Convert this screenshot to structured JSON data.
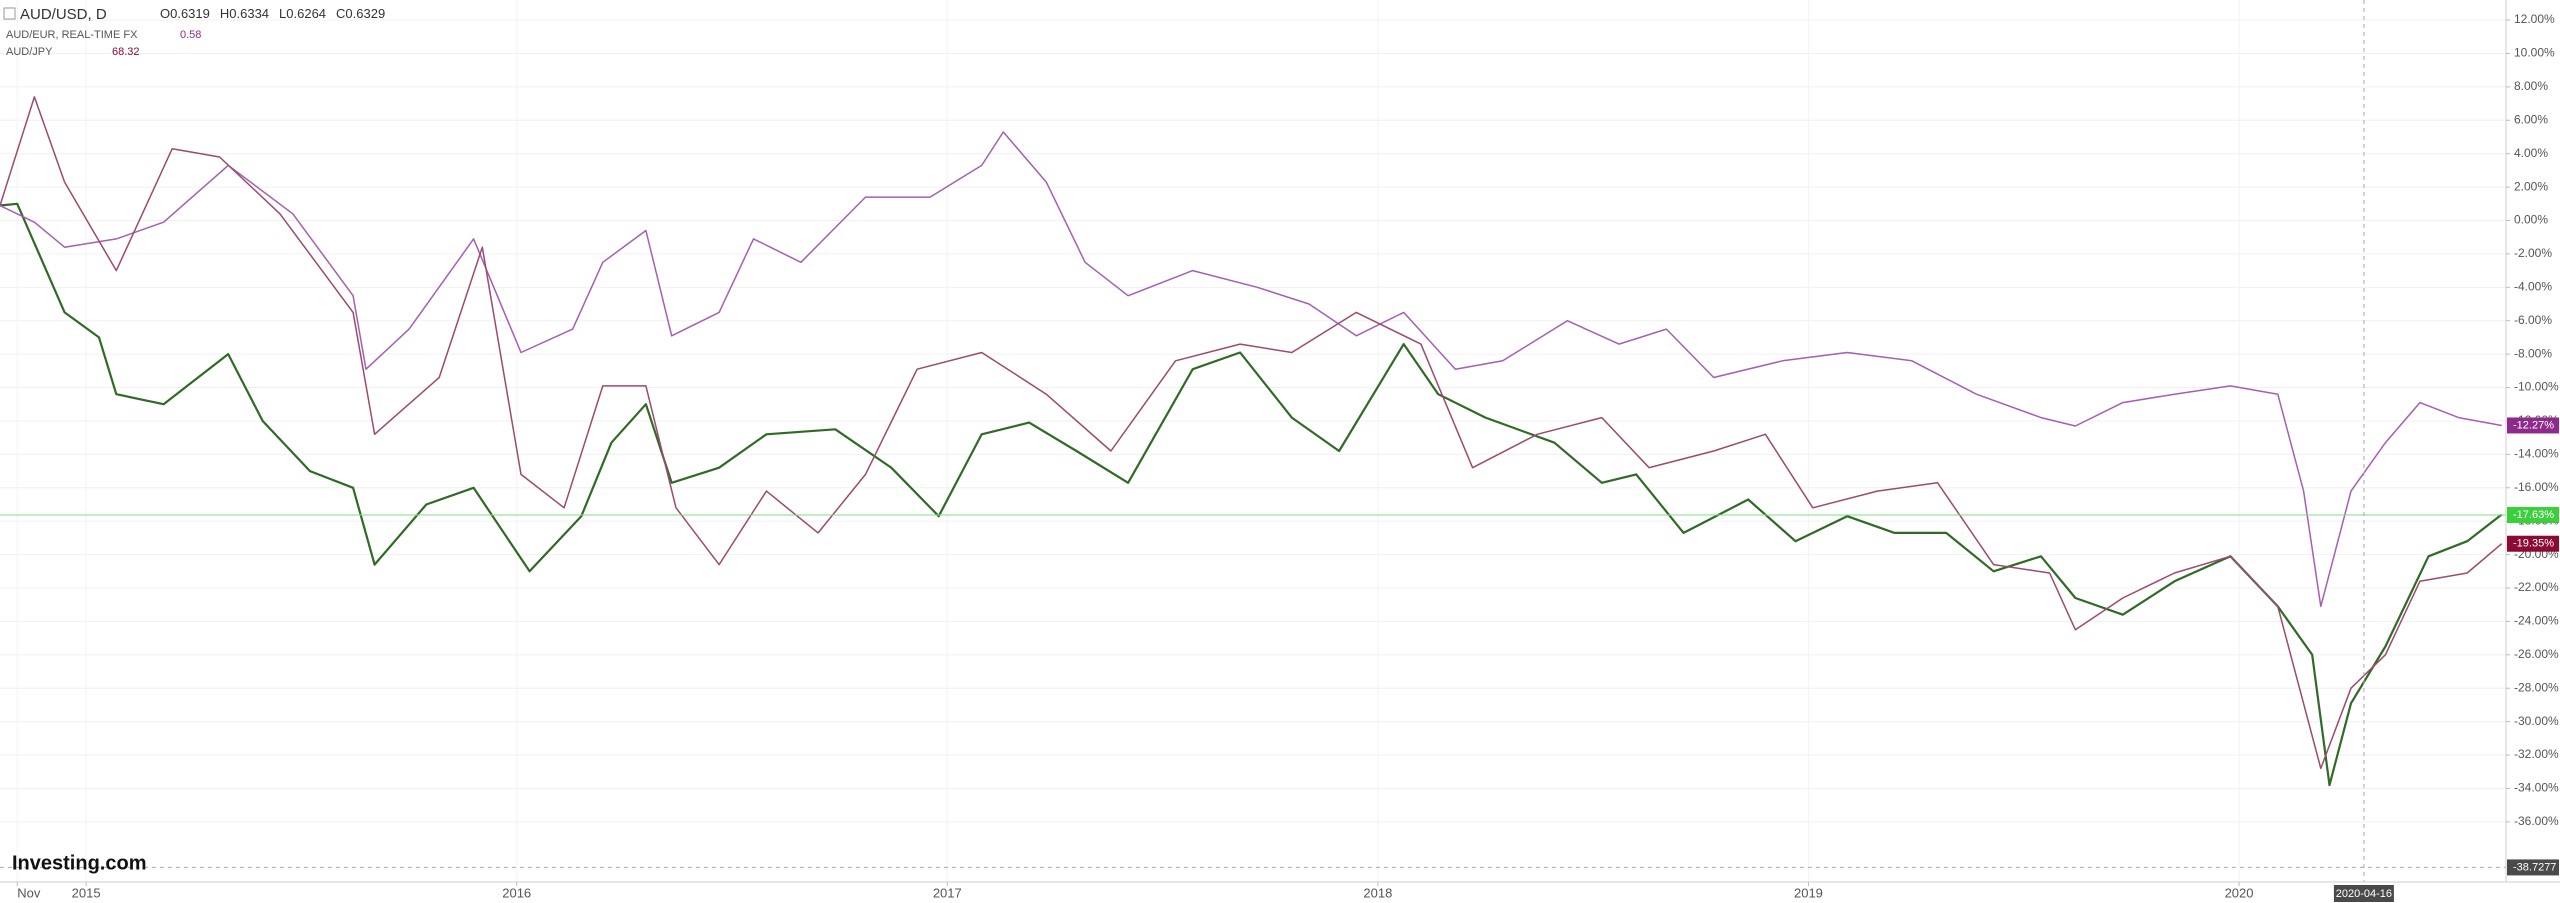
{
  "chart_data": {
    "type": "line",
    "title": "AUD/USD, D",
    "ohlc": [
      "O0.6319",
      "H0.6334",
      "L0.6264",
      "C0.6329"
    ],
    "watermark": "Investing.com",
    "xlim": [
      2014.8,
      2020.62
    ],
    "ylim": [
      -39.6,
      13.2
    ],
    "xticks": [
      {
        "value": 2014.84,
        "label": "Nov"
      },
      {
        "value": 2015,
        "label": "2015"
      },
      {
        "value": 2016,
        "label": "2016"
      },
      {
        "value": 2017,
        "label": "2017"
      },
      {
        "value": 2018,
        "label": "2018"
      },
      {
        "value": 2019,
        "label": "2019"
      },
      {
        "value": 2020,
        "label": "2020"
      }
    ],
    "yticks": [
      {
        "value": 12,
        "label": "12.00%"
      },
      {
        "value": 10,
        "label": "10.00%"
      },
      {
        "value": 8,
        "label": "8.00%"
      },
      {
        "value": 6,
        "label": "6.00%"
      },
      {
        "value": 4,
        "label": "4.00%"
      },
      {
        "value": 2,
        "label": "2.00%"
      },
      {
        "value": 0,
        "label": "0.00%"
      },
      {
        "value": -2,
        "label": "-2.00%"
      },
      {
        "value": -4,
        "label": "-4.00%"
      },
      {
        "value": -6,
        "label": "-6.00%"
      },
      {
        "value": -8,
        "label": "-8.00%"
      },
      {
        "value": -10,
        "label": "-10.00%"
      },
      {
        "value": -12,
        "label": "-12.00%"
      },
      {
        "value": -14,
        "label": "-14.00%"
      },
      {
        "value": -16,
        "label": "-16.00%"
      },
      {
        "value": -18,
        "label": "-18.00%"
      },
      {
        "value": -20,
        "label": "-20.00%"
      },
      {
        "value": -22,
        "label": "-22.00%"
      },
      {
        "value": -24,
        "label": "-24.00%"
      },
      {
        "value": -26,
        "label": "-26.00%"
      },
      {
        "value": -28,
        "label": "-28.00%"
      },
      {
        "value": -30,
        "label": "-30.00%"
      },
      {
        "value": -32,
        "label": "-32.00%"
      },
      {
        "value": -34,
        "label": "-34.00%"
      },
      {
        "value": -36,
        "label": "-36.00%"
      }
    ],
    "grid": true,
    "crosshair": {
      "x": {
        "value": 2020.29,
        "label": "2020-04-16"
      },
      "y": -38.7277
    },
    "series": [
      {
        "name": "AUD/USD, D",
        "color": "#2f6b25",
        "label_color": "#3ccf3c",
        "last": {
          "value": -17.63,
          "label": "-17.63%"
        },
        "x": [
          2014.8,
          2014.84,
          2014.95,
          2015.03,
          2015.07,
          2015.18,
          2015.33,
          2015.41,
          2015.52,
          2015.62,
          2015.67,
          2015.79,
          2015.9,
          2016.03,
          2016.15,
          2016.22,
          2016.3,
          2016.36,
          2016.47,
          2016.58,
          2016.74,
          2016.87,
          2016.98,
          2017.08,
          2017.19,
          2017.3,
          2017.42,
          2017.57,
          2017.68,
          2017.8,
          2017.91,
          2018.06,
          2018.14,
          2018.25,
          2018.41,
          2018.52,
          2018.6,
          2018.71,
          2018.86,
          2018.97,
          2019.09,
          2019.2,
          2019.32,
          2019.43,
          2019.54,
          2019.62,
          2019.73,
          2019.85,
          2019.98,
          2020.09,
          2020.17,
          2020.21,
          2020.26,
          2020.34,
          2020.44,
          2020.53,
          2020.61
        ],
        "values": [
          0.9,
          1,
          -5.5,
          -7,
          -10.4,
          -11,
          -8,
          -12,
          -15,
          -16,
          -20.6,
          -17,
          -16,
          -21,
          -17.7,
          -13.3,
          -11,
          -15.7,
          -14.8,
          -12.8,
          -12.5,
          -14.8,
          -17.7,
          -12.8,
          -12.1,
          -13.8,
          -15.7,
          -8.9,
          -7.9,
          -11.8,
          -13.8,
          -7.4,
          -10.4,
          -11.8,
          -13.3,
          -15.7,
          -15.2,
          -18.7,
          -16.7,
          -19.2,
          -17.7,
          -18.7,
          -18.7,
          -21,
          -20.1,
          -22.6,
          -23.6,
          -21.6,
          -20.1,
          -23.1,
          -26,
          -33.8,
          -28.9,
          -25.5,
          -20.1,
          -19.2,
          -17.6
        ]
      },
      {
        "name": "AUD/EUR, REAL-TIME FX",
        "price": "0.58",
        "color": "#a45fb4",
        "label_color": "#8e2a8c",
        "last": {
          "value": -12.27,
          "label": "-12.27%"
        },
        "x": [
          2014.8,
          2014.88,
          2014.95,
          2015.07,
          2015.18,
          2015.33,
          2015.48,
          2015.62,
          2015.65,
          2015.75,
          2015.9,
          2016.01,
          2016.13,
          2016.2,
          2016.3,
          2016.36,
          2016.47,
          2016.55,
          2016.66,
          2016.81,
          2016.96,
          2017.08,
          2017.13,
          2017.23,
          2017.32,
          2017.42,
          2017.57,
          2017.72,
          2017.84,
          2017.95,
          2018.06,
          2018.18,
          2018.29,
          2018.44,
          2018.56,
          2018.67,
          2018.78,
          2018.94,
          2019.09,
          2019.24,
          2019.39,
          2019.54,
          2019.62,
          2019.73,
          2019.85,
          2019.98,
          2020.09,
          2020.15,
          2020.19,
          2020.26,
          2020.34,
          2020.42,
          2020.51,
          2020.61
        ],
        "values": [
          0.9,
          -0.1,
          -1.6,
          -1.1,
          -0.1,
          3.3,
          0.4,
          -4.5,
          -8.9,
          -6.5,
          -1.1,
          -7.9,
          -6.5,
          -2.5,
          -0.6,
          -6.9,
          -5.5,
          -1.1,
          -2.5,
          1.4,
          1.4,
          3.3,
          5.3,
          2.3,
          -2.5,
          -4.5,
          -3,
          -4,
          -5,
          -6.9,
          -5.5,
          -8.9,
          -8.4,
          -6,
          -7.4,
          -6.5,
          -9.4,
          -8.4,
          -7.9,
          -8.4,
          -10.4,
          -11.8,
          -12.3,
          -10.9,
          -10.4,
          -9.9,
          -10.4,
          -16.2,
          -23.1,
          -16.2,
          -13.3,
          -10.9,
          -11.8,
          -12.27
        ]
      },
      {
        "name": "AUD/JPY",
        "price": "68.32",
        "color": "#9c4a6e",
        "label_color": "#8b0a36",
        "last": {
          "value": -19.35,
          "label": "-19.35%"
        },
        "x": [
          2014.8,
          2014.88,
          2014.95,
          2015.07,
          2015.2,
          2015.31,
          2015.45,
          2015.62,
          2015.67,
          2015.82,
          2015.92,
          2016.01,
          2016.11,
          2016.2,
          2016.3,
          2016.37,
          2016.47,
          2016.58,
          2016.7,
          2016.81,
          2016.93,
          2017.08,
          2017.23,
          2017.38,
          2017.53,
          2017.68,
          2017.8,
          2017.95,
          2018.1,
          2018.22,
          2018.37,
          2018.52,
          2018.63,
          2018.78,
          2018.9,
          2019.01,
          2019.16,
          2019.3,
          2019.43,
          2019.56,
          2019.62,
          2019.73,
          2019.85,
          2019.98,
          2020.09,
          2020.19,
          2020.26,
          2020.34,
          2020.42,
          2020.53,
          2020.61
        ],
        "values": [
          0.9,
          7.4,
          2.3,
          -3,
          4.3,
          3.8,
          0.4,
          -5.5,
          -12.8,
          -9.4,
          -1.6,
          -15.2,
          -17.2,
          -9.9,
          -9.9,
          -17.2,
          -20.6,
          -16.2,
          -18.7,
          -15.2,
          -8.9,
          -7.9,
          -10.4,
          -13.8,
          -8.4,
          -7.4,
          -7.9,
          -5.5,
          -7.4,
          -14.8,
          -12.8,
          -11.8,
          -14.8,
          -13.8,
          -12.8,
          -17.2,
          -16.2,
          -15.7,
          -20.6,
          -21.1,
          -24.5,
          -22.6,
          -21.1,
          -20.1,
          -23.1,
          -32.8,
          -28,
          -26,
          -21.6,
          -21.1,
          -19.35
        ]
      }
    ]
  }
}
